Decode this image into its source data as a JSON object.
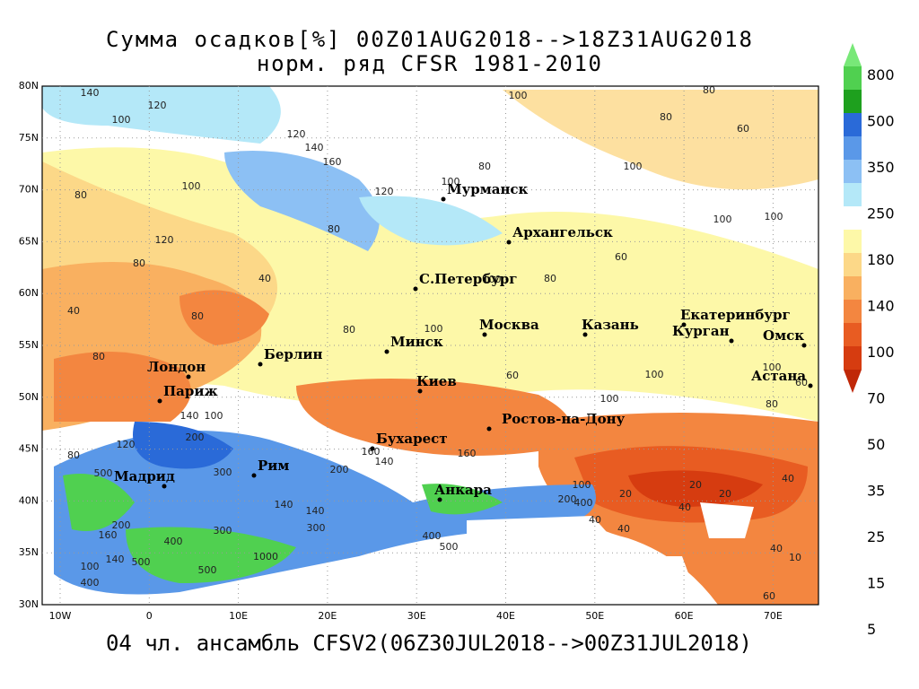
{
  "header": {
    "title": "Сумма осадков[%] 00Z01AUG2018-->18Z31AUG2018",
    "subtitle": "норм. ряд CFSR 1981-2010"
  },
  "footer": "04 чл. ансамбль CFSV2(06Z30JUL2018-->00Z31JUL2018)",
  "map": {
    "lat_labels": [
      "80N",
      "75N",
      "70N",
      "65N",
      "60N",
      "55N",
      "50N",
      "45N",
      "40N",
      "35N",
      "30N"
    ],
    "lon_labels": [
      "10W",
      "0",
      "10E",
      "20E",
      "30E",
      "40E",
      "50E",
      "60E",
      "70E"
    ],
    "cities": [
      "Мурманск",
      "Архангельск",
      "С.Петербург",
      "Москва",
      "Казань",
      "Екатеринбург",
      "Курган",
      "Омск",
      "Астана",
      "Минск",
      "Киев",
      "Лондон",
      "Париж",
      "Берлин",
      "Рим",
      "Мадрид",
      "Бухарест",
      "Анкара",
      "Ростов-на-Дону"
    ],
    "contour_labels": [
      "140",
      "120",
      "100",
      "120",
      "140",
      "160",
      "100",
      "80",
      "120",
      "80",
      "100",
      "80",
      "80",
      "60",
      "100",
      "80",
      "120",
      "100",
      "80",
      "100",
      "80",
      "100",
      "100",
      "60",
      "40",
      "80",
      "40",
      "80",
      "80",
      "100",
      "100",
      "100",
      "60",
      "80",
      "60",
      "100",
      "140",
      "100",
      "200",
      "120",
      "80",
      "500",
      "300",
      "200",
      "160",
      "140",
      "160",
      "100",
      "200",
      "20",
      "20",
      "20",
      "40",
      "40",
      "40",
      "40",
      "10",
      "60",
      "200",
      "160",
      "400",
      "300",
      "300",
      "1000",
      "500",
      "140",
      "500",
      "100",
      "400",
      "140",
      "140",
      "400",
      "500",
      "400",
      "40"
    ]
  },
  "colorbar": {
    "labels": [
      800,
      500,
      350,
      250,
      180,
      140,
      100,
      70,
      50,
      35,
      25,
      15,
      5
    ],
    "colors": [
      "#78e878",
      "#50d050",
      "#1ea01e",
      "#2a6ad8",
      "#5a98e8",
      "#8cc0f4",
      "#b4e8f8",
      "#ffffff",
      "#fdf8a8",
      "#fcd888",
      "#f9b060",
      "#f38640",
      "#e85c22",
      "#d63c10",
      "#c02808"
    ]
  }
}
